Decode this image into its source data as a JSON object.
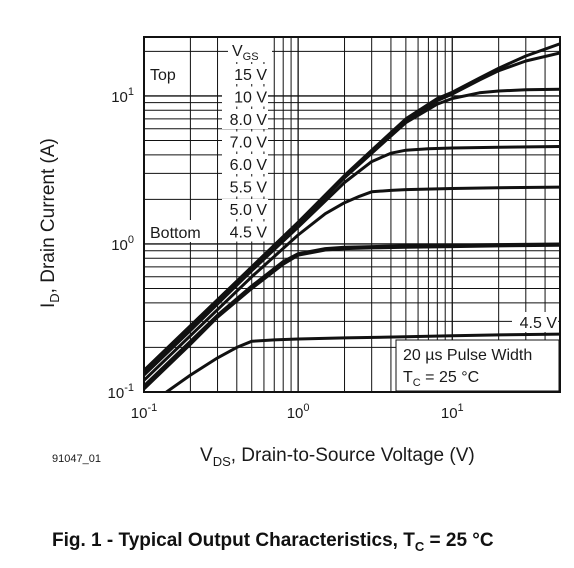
{
  "figure_id": "91047_01",
  "caption": {
    "main": "Fig. 1 - Typical Output Characteristics, T",
    "sub": "C",
    "tail": " = 25 °C"
  },
  "chart_data": {
    "type": "line",
    "x_scale": "log",
    "y_scale": "log",
    "xlim": [
      0.1,
      50
    ],
    "ylim": [
      0.1,
      25
    ],
    "grid": true,
    "xlabel": {
      "prefix": "V",
      "sub": "DS",
      "rest": ", Drain-to-Source Voltage (V)"
    },
    "ylabel": {
      "prefix": "I",
      "sub": "D",
      "rest": ", Drain Current (A)"
    },
    "x_ticks": [
      {
        "value": 0.1,
        "base": "10",
        "exp": "-1"
      },
      {
        "value": 1,
        "base": "10",
        "exp": "0"
      },
      {
        "value": 10,
        "base": "10",
        "exp": "1"
      }
    ],
    "y_ticks": [
      {
        "value": 0.1,
        "base": "10",
        "exp": "-1"
      },
      {
        "value": 1,
        "base": "10",
        "exp": "0"
      },
      {
        "value": 10,
        "base": "10",
        "exp": "1"
      }
    ],
    "legend": {
      "title_main": "V",
      "title_sub": "GS",
      "top_label": "Top",
      "bottom_label": "Bottom",
      "entries": [
        "15 V",
        "10 V",
        "8.0 V",
        "7.0 V",
        "6.0 V",
        "5.5 V",
        "5.0 V",
        "4.5 V"
      ]
    },
    "annotations": {
      "curve_label": "4.5 V",
      "pulse": "20 µs Pulse Width",
      "tc_main": "T",
      "tc_sub": "C",
      "tc_rest": " = 25 °C"
    },
    "series": [
      {
        "name": "15 V",
        "x": [
          0.1,
          0.2,
          0.5,
          1,
          2,
          3,
          5,
          8,
          10,
          15,
          20,
          30,
          50
        ],
        "y": [
          0.14,
          0.28,
          0.7,
          1.4,
          2.9,
          4.3,
          7.0,
          9.6,
          10.6,
          13.2,
          15.4,
          18.6,
          22.5
        ]
      },
      {
        "name": "10 V",
        "x": [
          0.1,
          0.2,
          0.5,
          1,
          2,
          3,
          5,
          8,
          10,
          15,
          20,
          30,
          50
        ],
        "y": [
          0.14,
          0.28,
          0.7,
          1.4,
          2.85,
          4.2,
          6.8,
          9.3,
          10.3,
          12.8,
          14.8,
          17.2,
          19.5
        ]
      },
      {
        "name": "8.0 V",
        "x": [
          0.1,
          0.2,
          0.5,
          1,
          2,
          3,
          5,
          8,
          10,
          15,
          20,
          30,
          50
        ],
        "y": [
          0.135,
          0.27,
          0.68,
          1.35,
          2.8,
          4.1,
          6.6,
          8.8,
          9.6,
          10.5,
          10.8,
          11.0,
          11.1
        ]
      },
      {
        "name": "7.0 V",
        "x": [
          0.1,
          0.2,
          0.5,
          1,
          2,
          3,
          4,
          5,
          7,
          10,
          20,
          50
        ],
        "y": [
          0.13,
          0.26,
          0.66,
          1.3,
          2.6,
          3.6,
          4.1,
          4.3,
          4.4,
          4.45,
          4.5,
          4.55
        ]
      },
      {
        "name": "6.0 V",
        "x": [
          0.1,
          0.2,
          0.5,
          1,
          1.5,
          2,
          2.5,
          3,
          4,
          5,
          10,
          20,
          50
        ],
        "y": [
          0.12,
          0.24,
          0.6,
          1.15,
          1.6,
          1.9,
          2.1,
          2.25,
          2.3,
          2.33,
          2.37,
          2.4,
          2.42
        ]
      },
      {
        "name": "5.5 V",
        "x": [
          0.1,
          0.2,
          0.3,
          0.5,
          0.8,
          1,
          1.5,
          2,
          3,
          5,
          10,
          20,
          50
        ],
        "y": [
          0.11,
          0.22,
          0.33,
          0.52,
          0.76,
          0.86,
          0.93,
          0.95,
          0.96,
          0.97,
          0.98,
          0.99,
          1.0
        ]
      },
      {
        "name": "5.0 V",
        "x": [
          0.1,
          0.2,
          0.3,
          0.5,
          0.8,
          1,
          1.5,
          2,
          3,
          5,
          10,
          20,
          50
        ],
        "y": [
          0.105,
          0.21,
          0.32,
          0.5,
          0.73,
          0.84,
          0.91,
          0.93,
          0.94,
          0.95,
          0.96,
          0.97,
          0.98
        ]
      },
      {
        "name": "4.5 V",
        "x": [
          0.14,
          0.2,
          0.3,
          0.4,
          0.5,
          0.7,
          1,
          2,
          5,
          10,
          20,
          50
        ],
        "y": [
          0.1,
          0.13,
          0.17,
          0.2,
          0.22,
          0.225,
          0.228,
          0.232,
          0.236,
          0.24,
          0.243,
          0.246
        ]
      }
    ]
  }
}
